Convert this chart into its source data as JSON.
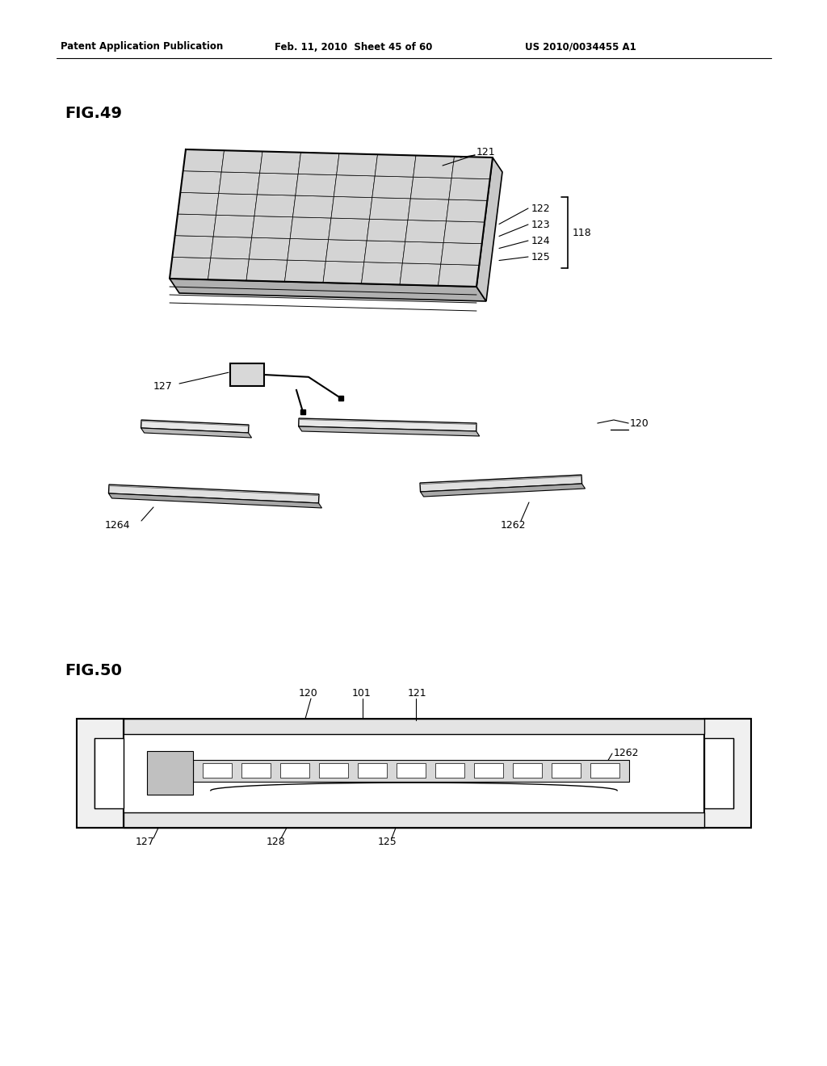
{
  "bg_color": "#ffffff",
  "header_left": "Patent Application Publication",
  "header_mid": "Feb. 11, 2010  Sheet 45 of 60",
  "header_right": "US 2010/0034455 A1",
  "fig49_label": "FIG.49",
  "fig50_label": "FIG.50",
  "text_color": "#000000",
  "line_color": "#000000"
}
